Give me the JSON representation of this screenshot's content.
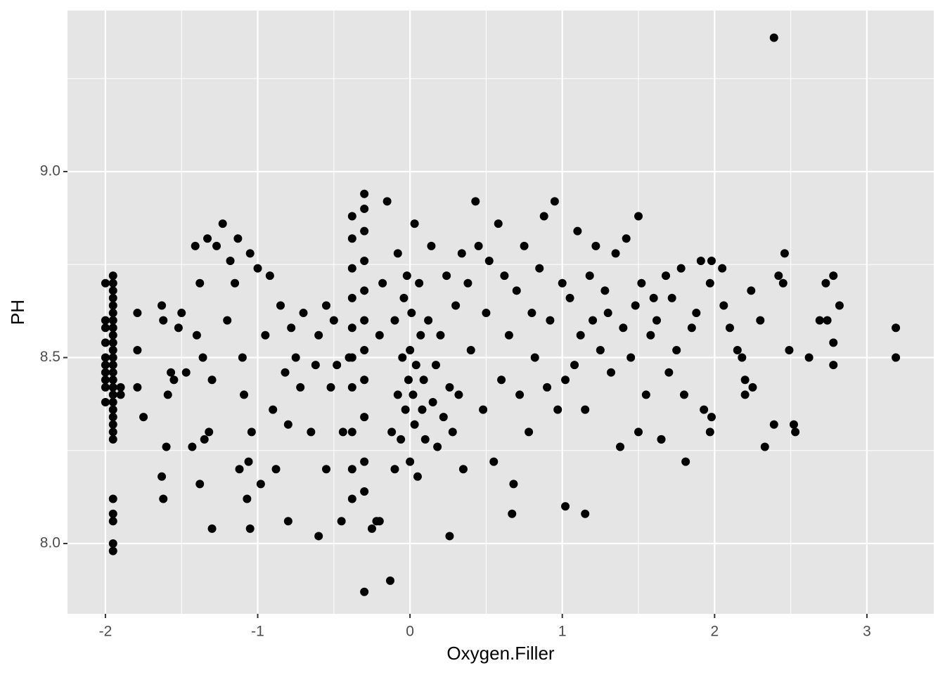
{
  "chart_data": {
    "type": "scatter",
    "x_label": "Oxygen.Filler",
    "y_label": "PH",
    "xlim": [
      -2.249,
      3.439
    ],
    "ylim": [
      7.811,
      9.433
    ],
    "xticks": [
      -2,
      -1,
      0,
      1,
      2,
      3
    ],
    "yticks": [
      {
        "value": 8,
        "label": "8.0"
      },
      {
        "value": 8.5,
        "label": "8.5"
      },
      {
        "value": 9,
        "label": "9.0"
      }
    ],
    "grid": true,
    "background": "#e5e5e5",
    "grid_color": "#ffffff",
    "series": [
      {
        "color": "#000000",
        "x": [
          2.39,
          -0.3,
          -0.13,
          3.19,
          3.19,
          2.78,
          2.82,
          2.78,
          2.78,
          2.73,
          2.69,
          2.74,
          2.62,
          2.49,
          2.46,
          2.42,
          2.45,
          2.39,
          2.52,
          2.53,
          2.33,
          2.3,
          2.24,
          2.25,
          2.2,
          2.2,
          2.05,
          2.06,
          2.1,
          2.15,
          2.18,
          1.97,
          1.98,
          1.93,
          1.97,
          1.98,
          1.91,
          1.81,
          1.65,
          1.5,
          1.02,
          1.15,
          0.67,
          0.26,
          -0.6,
          -1.05,
          -1.3,
          -0.8,
          -0.45,
          -0.25,
          -0.22,
          -1.95,
          -1.95,
          -1.95,
          -1.95,
          -1.95,
          -1.95,
          -1.95,
          -1.95,
          -1.95,
          -1.95,
          -1.95,
          -1.95,
          -1.95,
          -1.95,
          -1.95,
          -1.95,
          -1.95,
          -1.95,
          -1.95,
          -1.95,
          -1.95,
          -1.95,
          -1.95,
          -1.95,
          -1.95,
          -1.95,
          -1.95,
          -1.95,
          -2,
          -2,
          -2,
          -2,
          -2,
          -2,
          -2,
          -2,
          -2,
          -2,
          -1.9,
          -1.9,
          -1.79,
          -1.79,
          -1.79,
          -1.75,
          -1.63,
          -1.62,
          -1.63,
          -1.62,
          -1.6,
          -1.59,
          -1.57,
          -1.55,
          -1.52,
          -1.5,
          -1.47,
          -1.43,
          -1.41,
          -1.4,
          -1.38,
          -1.38,
          -1.36,
          -1.35,
          -1.33,
          -1.32,
          -1.3,
          -1.27,
          -1.23,
          -1.2,
          -1.18,
          -1.15,
          -1.13,
          -1.12,
          -1.1,
          -1.09,
          -1.07,
          -1.06,
          -1.05,
          -1.04,
          -1,
          -0.98,
          -0.95,
          -0.92,
          -0.9,
          -0.88,
          -0.85,
          -0.82,
          -0.8,
          -0.78,
          -0.75,
          -0.72,
          -0.7,
          -0.65,
          -0.62,
          -0.6,
          -0.55,
          -0.55,
          -0.52,
          -0.5,
          -0.48,
          -0.44,
          -0.4,
          -0.38,
          -0.38,
          -0.38,
          -0.38,
          -0.38,
          -0.38,
          -0.38,
          -0.38,
          -0.38,
          -0.38,
          -0.3,
          -0.3,
          -0.3,
          -0.3,
          -0.3,
          -0.3,
          -0.3,
          -0.3,
          -0.3,
          -0.3,
          -0.3,
          -0.2,
          -0.2,
          -0.18,
          -0.15,
          -0.12,
          -0.1,
          -0.1,
          -0.08,
          -0.08,
          -0.06,
          -0.05,
          -0.04,
          -0.03,
          -0.02,
          -0.01,
          0,
          0,
          0.01,
          0.02,
          0.03,
          0.03,
          0.04,
          0.05,
          0.06,
          0.07,
          0.08,
          0.09,
          0.1,
          0.12,
          0.14,
          0.15,
          0.17,
          0.18,
          0.2,
          0.22,
          0.24,
          0.26,
          0.28,
          0.3,
          0.32,
          0.34,
          0.35,
          0.38,
          0.4,
          0.43,
          0.45,
          0.48,
          0.5,
          0.52,
          0.55,
          0.58,
          0.6,
          0.62,
          0.65,
          0.68,
          0.7,
          0.72,
          0.75,
          0.78,
          0.8,
          0.82,
          0.85,
          0.88,
          0.9,
          0.92,
          0.95,
          0.97,
          1,
          1.02,
          1.05,
          1.08,
          1.1,
          1.12,
          1.15,
          1.18,
          1.2,
          1.22,
          1.25,
          1.28,
          1.3,
          1.32,
          1.35,
          1.38,
          1.4,
          1.42,
          1.45,
          1.48,
          1.5,
          1.52,
          1.55,
          1.58,
          1.6,
          1.62,
          1.65,
          1.68,
          1.7,
          1.72,
          1.75,
          1.78,
          1.8,
          1.85,
          1.88
        ],
        "values": [
          9.36,
          7.87,
          7.9,
          8.58,
          8.5,
          8.72,
          8.64,
          8.54,
          8.48,
          8.7,
          8.6,
          8.6,
          8.5,
          8.52,
          8.78,
          8.72,
          8.7,
          8.32,
          8.32,
          8.3,
          8.26,
          8.6,
          8.68,
          8.42,
          8.44,
          8.4,
          8.74,
          8.64,
          8.58,
          8.52,
          8.5,
          8.3,
          8.34,
          8.36,
          8.7,
          8.76,
          8.76,
          8.22,
          8.28,
          8.3,
          8.1,
          8.08,
          8.08,
          8.02,
          8.02,
          8.04,
          8.04,
          8.06,
          8.06,
          8.04,
          8.06,
          7.98,
          8,
          8.06,
          8.08,
          8.12,
          8.28,
          8.3,
          8.32,
          8.34,
          8.36,
          8.38,
          8.4,
          8.42,
          8.44,
          8.46,
          8.48,
          8.5,
          8.52,
          8.54,
          8.56,
          8.58,
          8.6,
          8.62,
          8.64,
          8.66,
          8.68,
          8.7,
          8.72,
          8.38,
          8.42,
          8.44,
          8.46,
          8.48,
          8.5,
          8.54,
          8.58,
          8.6,
          8.7,
          8.4,
          8.42,
          8.62,
          8.52,
          8.42,
          8.34,
          8.64,
          8.6,
          8.18,
          8.12,
          8.26,
          8.4,
          8.46,
          8.44,
          8.58,
          8.62,
          8.46,
          8.26,
          8.8,
          8.56,
          8.16,
          8.7,
          8.5,
          8.28,
          8.82,
          8.3,
          8.44,
          8.8,
          8.86,
          8.6,
          8.76,
          8.7,
          8.82,
          8.2,
          8.5,
          8.4,
          8.12,
          8.22,
          8.78,
          8.3,
          8.74,
          8.16,
          8.56,
          8.72,
          8.36,
          8.2,
          8.64,
          8.46,
          8.32,
          8.58,
          8.5,
          8.42,
          8.62,
          8.3,
          8.48,
          8.56,
          8.2,
          8.64,
          8.42,
          8.6,
          8.48,
          8.3,
          8.5,
          8.12,
          8.2,
          8.3,
          8.42,
          8.5,
          8.58,
          8.66,
          8.74,
          8.82,
          8.88,
          8.14,
          8.22,
          8.34,
          8.44,
          8.52,
          8.6,
          8.68,
          8.76,
          8.84,
          8.9,
          8.94,
          8.06,
          8.56,
          8.7,
          8.92,
          8.3,
          8.2,
          8.6,
          8.4,
          8.78,
          8.28,
          8.5,
          8.66,
          8.36,
          8.72,
          8.44,
          8.52,
          8.22,
          8.62,
          8.4,
          8.32,
          8.86,
          8.48,
          8.18,
          8.7,
          8.56,
          8.36,
          8.44,
          8.28,
          8.6,
          8.8,
          8.38,
          8.48,
          8.26,
          8.56,
          8.34,
          8.72,
          8.42,
          8.3,
          8.64,
          8.4,
          8.78,
          8.2,
          8.7,
          8.52,
          8.92,
          8.8,
          8.36,
          8.62,
          8.76,
          8.22,
          8.86,
          8.44,
          8.72,
          8.56,
          8.16,
          8.68,
          8.4,
          8.8,
          8.3,
          8.62,
          8.5,
          8.74,
          8.88,
          8.42,
          8.6,
          8.92,
          8.36,
          8.7,
          8.44,
          8.66,
          8.48,
          8.84,
          8.56,
          8.36,
          8.72,
          8.6,
          8.8,
          8.52,
          8.68,
          8.62,
          8.46,
          8.78,
          8.26,
          8.58,
          8.82,
          8.5,
          8.64,
          8.88,
          8.7,
          8.4,
          8.56,
          8.66,
          8.6,
          8.28,
          8.72,
          8.46,
          8.66,
          8.52,
          8.74,
          8.4,
          8.58,
          8.62
        ]
      }
    ]
  }
}
